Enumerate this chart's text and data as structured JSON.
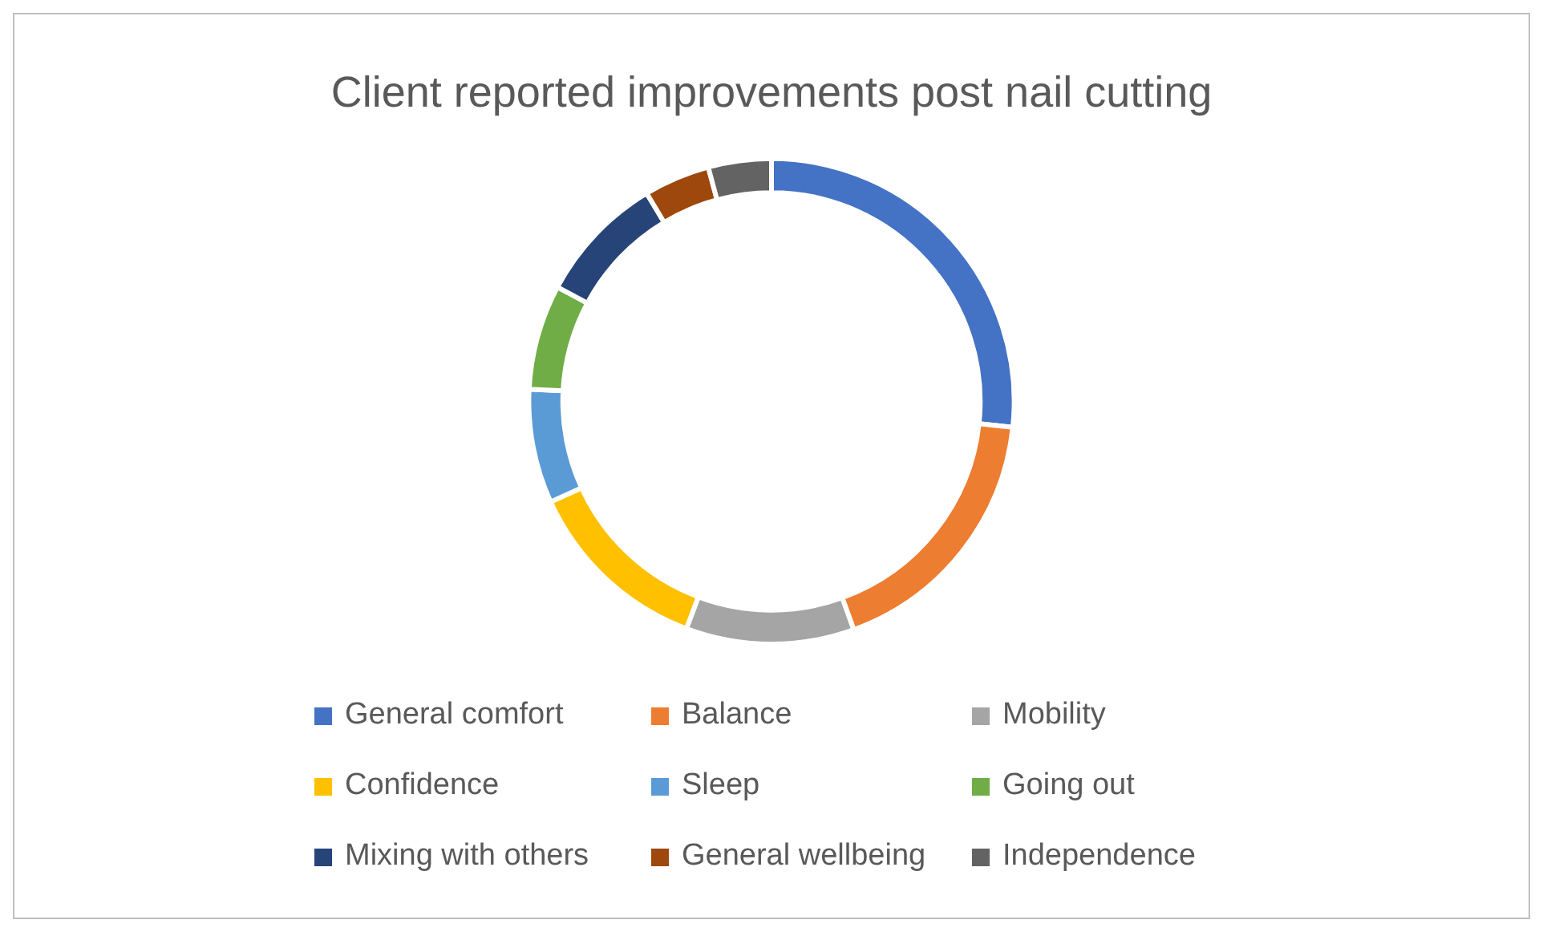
{
  "chart_data": {
    "type": "donut",
    "title": "Client reported improvements post nail cutting",
    "categories": [
      "General comfort",
      "Balance",
      "Mobility",
      "Confidence",
      "Sleep",
      "Going out",
      "Mixing with others",
      "General wellbeing",
      "Independence"
    ],
    "values": [
      26.7,
      17.8,
      11.2,
      12.5,
      7.6,
      7,
      8.6,
      4.4,
      4.2
    ],
    "colors": [
      "#4472c4",
      "#ed7d31",
      "#a5a5a5",
      "#ffc000",
      "#5b9bd5",
      "#70ad47",
      "#264478",
      "#9e480e",
      "#636363"
    ],
    "legend": "bottom"
  }
}
